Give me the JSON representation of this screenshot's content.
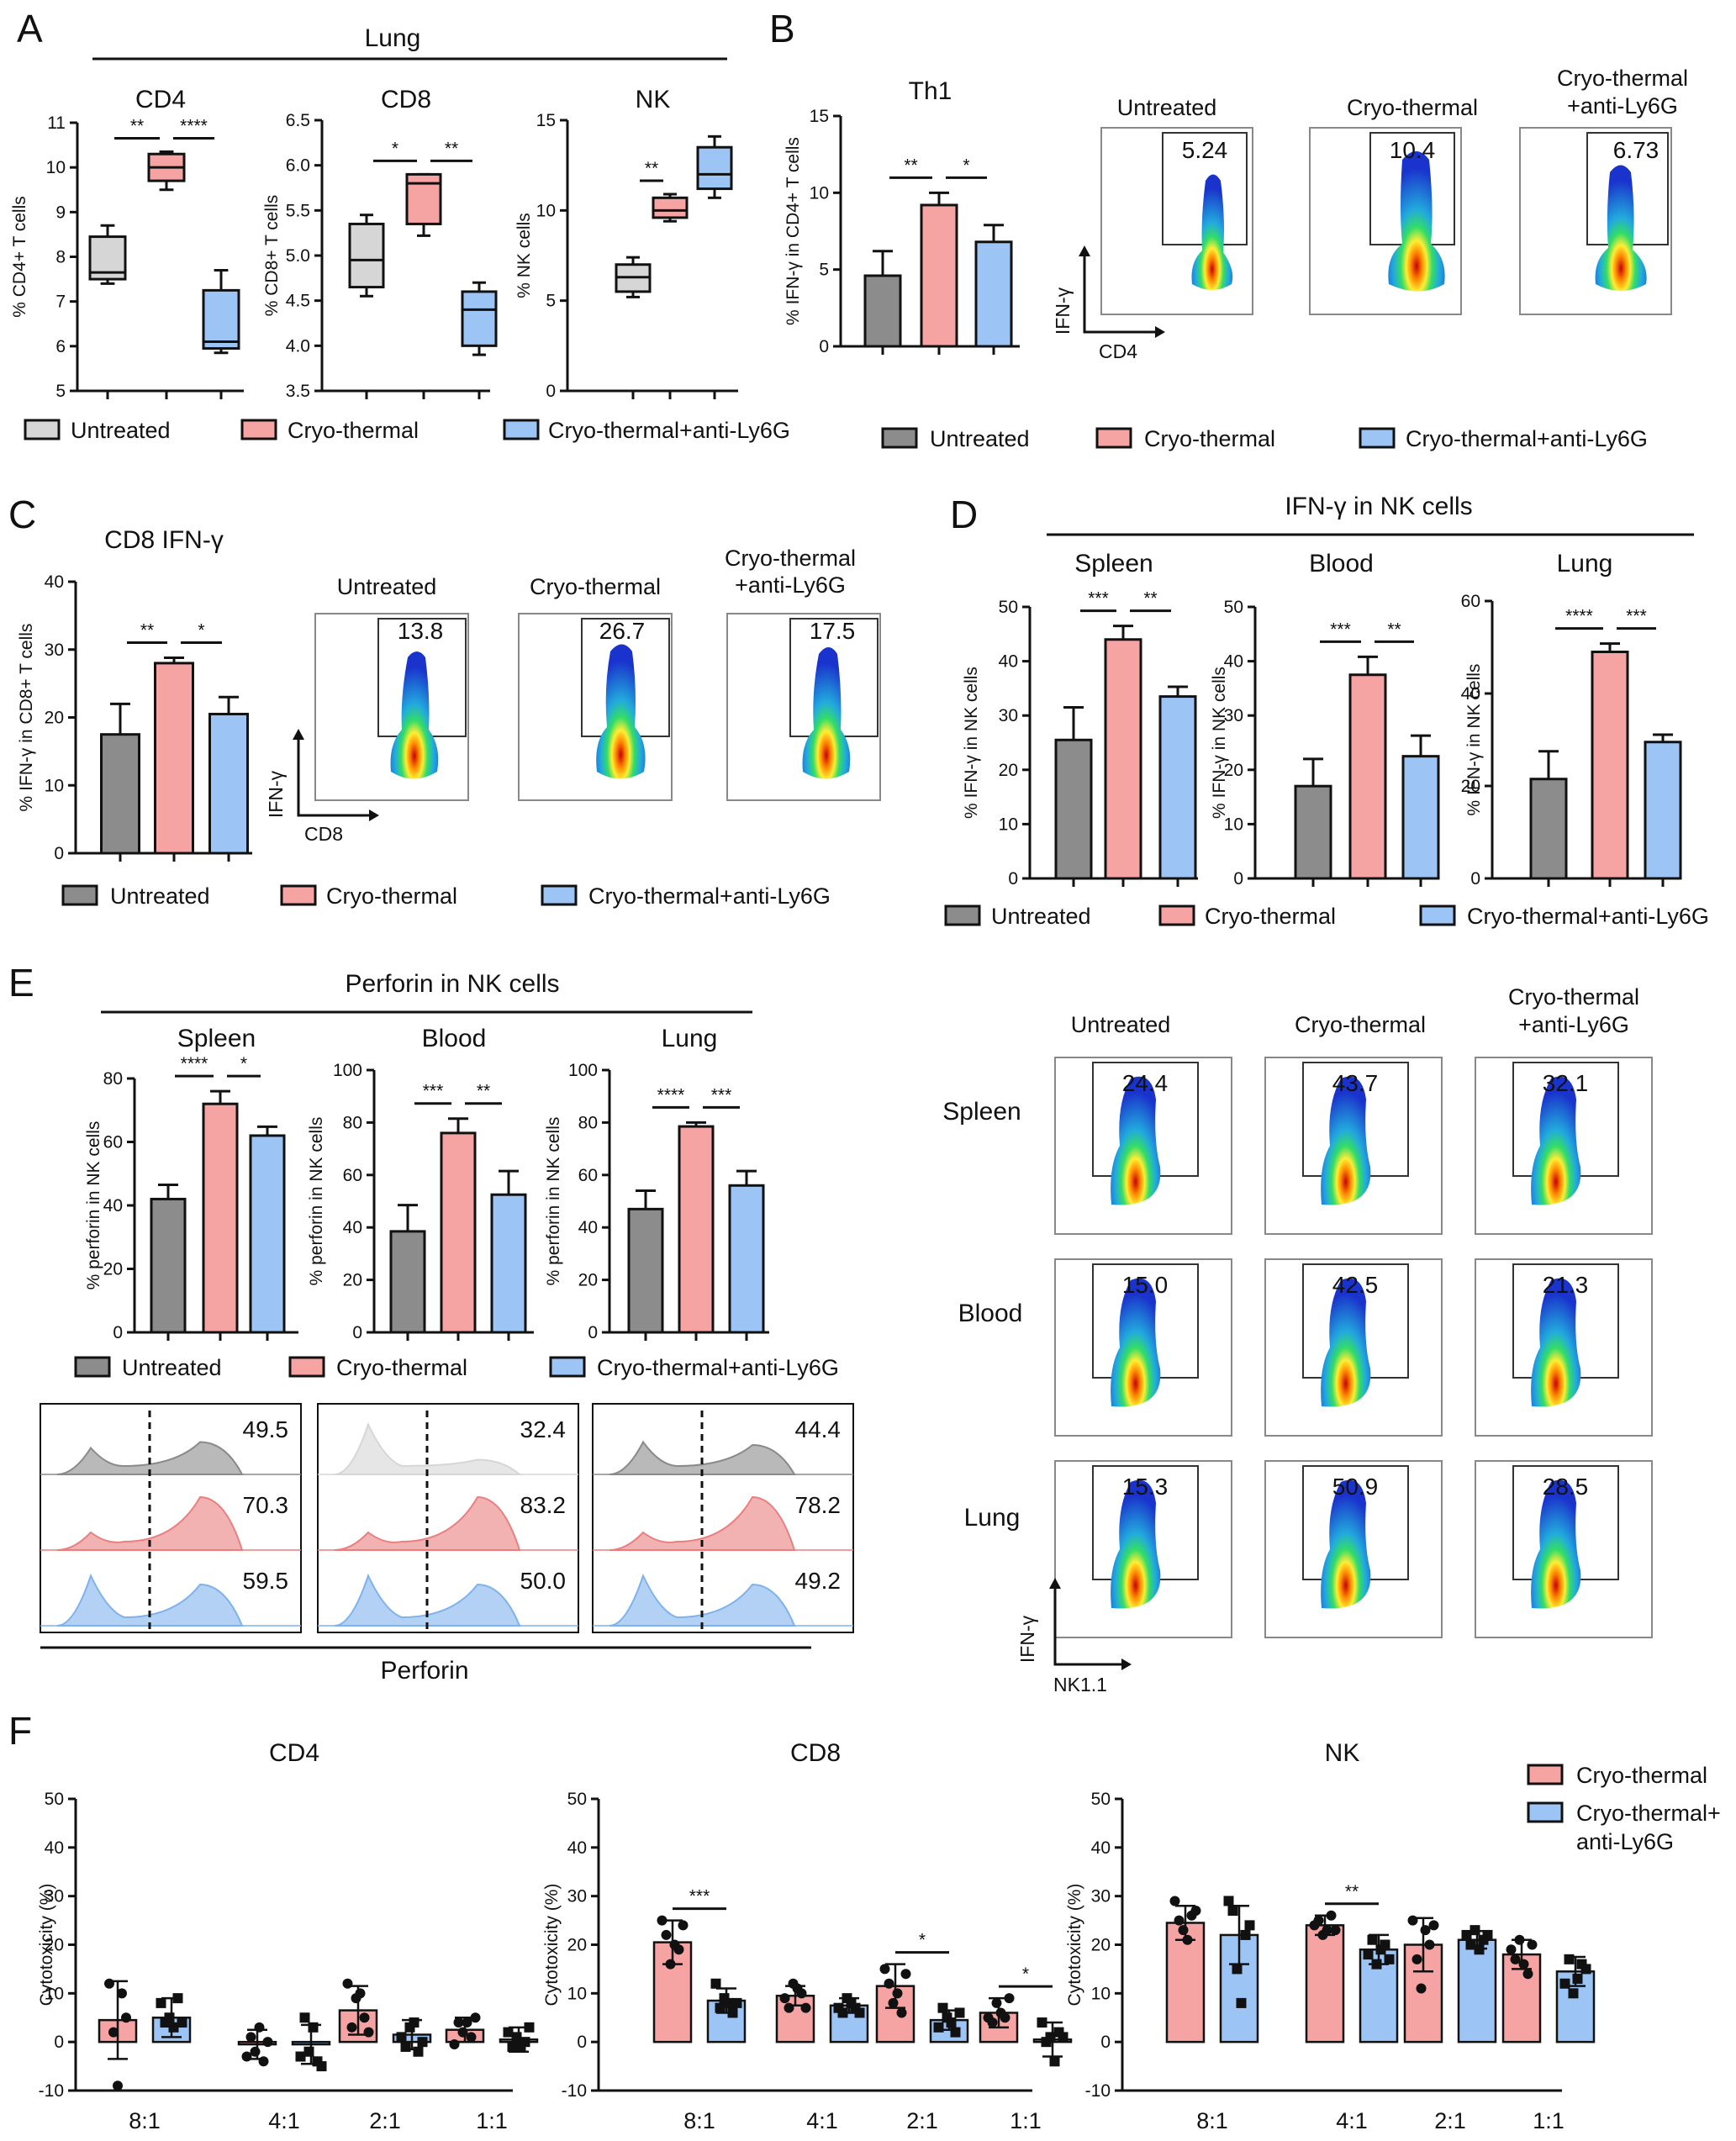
{
  "colors": {
    "untreated": "#8c8c8c",
    "cryo": "#f5a3a3",
    "ly6g": "#9cc5f5",
    "untreated_light": "#d6d6d6",
    "untreated_dark": "#8a8a8a",
    "cryo_dark": "#ea7f7f",
    "ly6g_dark": "#7fb2ec"
  },
  "panel_labels": [
    "A",
    "B",
    "C",
    "D",
    "E",
    "F"
  ],
  "legend": {
    "untreated": "Untreated",
    "cryo": "Cryo-thermal",
    "ly6g": "Cryo-thermal+anti-Ly6G",
    "f_cryo": "Cryo-thermal",
    "f_ly6g_1": "Cryo-thermal+",
    "f_ly6g_2": "anti-Ly6G"
  },
  "headers": {
    "lung": "Lung",
    "ifng_nk": "IFN-γ in NK cells",
    "perforin_nk": "Perforin in NK cells",
    "perforin": "Perforin"
  },
  "flow_labels": {
    "untreated": "Untreated",
    "cryo": "Cryo-thermal",
    "cryo_b1": "Cryo-thermal",
    "cryo_b2": "+anti-Ly6G",
    "ifng": "IFN-γ",
    "cd4": "CD4",
    "cd8": "CD8",
    "nk11": "NK1.1",
    "spleen": "Spleen",
    "blood": "Blood",
    "lung": "Lung"
  },
  "flow_values": {
    "B": [
      "5.24",
      "10.4",
      "6.73"
    ],
    "C": [
      "13.8",
      "26.7",
      "17.5"
    ],
    "E": [
      [
        "24.4",
        "43.7",
        "32.1"
      ],
      [
        "15.0",
        "42.5",
        "21.3"
      ],
      [
        "15.3",
        "50.9",
        "28.5"
      ]
    ]
  },
  "histogram_values": [
    [
      "49.5",
      "70.3",
      "59.5"
    ],
    [
      "32.4",
      "83.2",
      "50.0"
    ],
    [
      "44.4",
      "78.2",
      "49.2"
    ]
  ],
  "chart_data": [
    {
      "id": "A1",
      "type": "box",
      "title": "CD4",
      "ylabel": "% CD4+ T cells",
      "ylim": [
        5,
        11
      ],
      "yticks": [
        5,
        6,
        7,
        8,
        9,
        10,
        11
      ],
      "boxes": [
        {
          "group": "Untreated",
          "min": 7.4,
          "q1": 7.5,
          "median": 7.65,
          "q3": 8.45,
          "max": 8.7
        },
        {
          "group": "Cryo-thermal",
          "min": 9.5,
          "q1": 9.7,
          "median": 10.0,
          "q3": 10.3,
          "max": 10.35
        },
        {
          "group": "Cryo-thermal+anti-Ly6G",
          "min": 5.85,
          "q1": 5.95,
          "median": 6.1,
          "q3": 7.25,
          "max": 7.7
        }
      ],
      "sig": [
        {
          "between": [
            0,
            1
          ],
          "label": "**"
        },
        {
          "between": [
            1,
            2
          ],
          "label": "****"
        }
      ]
    },
    {
      "id": "A2",
      "type": "box",
      "title": "CD8",
      "ylabel": "% CD8+ T cells",
      "ylim": [
        3.5,
        6.5
      ],
      "yticks": [
        "3.5",
        "4.0",
        "4.5",
        "5.0",
        "5.5",
        "6.0",
        "6.5"
      ],
      "boxes": [
        {
          "group": "Untreated",
          "min": 4.55,
          "q1": 4.65,
          "median": 4.95,
          "q3": 5.35,
          "max": 5.45
        },
        {
          "group": "Cryo-thermal",
          "min": 5.22,
          "q1": 5.35,
          "median": 5.8,
          "q3": 5.9,
          "max": 5.9
        },
        {
          "group": "Cryo-thermal+anti-Ly6G",
          "min": 3.9,
          "q1": 4.0,
          "median": 4.4,
          "q3": 4.6,
          "max": 4.7
        }
      ],
      "sig": [
        {
          "between": [
            0,
            1
          ],
          "label": "*"
        },
        {
          "between": [
            1,
            2
          ],
          "label": "**"
        }
      ]
    },
    {
      "id": "A3",
      "type": "box",
      "title": "NK",
      "ylabel": "% NK cells",
      "ylim": [
        0,
        15
      ],
      "yticks": [
        0,
        5,
        10,
        15
      ],
      "boxes": [
        {
          "group": "Untreated",
          "min": 5.2,
          "q1": 5.5,
          "median": 6.3,
          "q3": 7.0,
          "max": 7.4
        },
        {
          "group": "Cryo-thermal",
          "min": 9.4,
          "q1": 9.6,
          "median": 10.0,
          "q3": 10.7,
          "max": 10.9
        },
        {
          "group": "Cryo-thermal+anti-Ly6G",
          "min": 10.7,
          "q1": 11.2,
          "median": 12.0,
          "q3": 13.5,
          "max": 14.1
        }
      ],
      "sig": [
        {
          "between": [
            0,
            1
          ],
          "label": "**"
        }
      ]
    },
    {
      "id": "B1",
      "type": "bar",
      "title": "Th1",
      "ylabel": "% IFN-γ in CD4+ T cells",
      "ylim": [
        0,
        15
      ],
      "yticks": [
        0,
        5,
        10,
        15
      ],
      "categories": [
        "Untreated",
        "Cryo-thermal",
        "Cryo-thermal+anti-Ly6G"
      ],
      "values": [
        4.6,
        9.2,
        6.8
      ],
      "err": [
        1.6,
        0.8,
        1.1
      ],
      "sig": [
        {
          "between": [
            0,
            1
          ],
          "label": "**"
        },
        {
          "between": [
            1,
            2
          ],
          "label": "*"
        }
      ]
    },
    {
      "id": "C1",
      "type": "bar",
      "title": "CD8 IFN-γ",
      "ylabel": "% IFN-γ in CD8+ T cells",
      "ylim": [
        0,
        40
      ],
      "yticks": [
        0,
        10,
        20,
        30,
        40
      ],
      "categories": [
        "Untreated",
        "Cryo-thermal",
        "Cryo-thermal+anti-Ly6G"
      ],
      "values": [
        17.5,
        28,
        20.5
      ],
      "err": [
        4.5,
        0.8,
        2.5
      ],
      "sig": [
        {
          "between": [
            0,
            1
          ],
          "label": "**"
        },
        {
          "between": [
            1,
            2
          ],
          "label": "*"
        }
      ]
    },
    {
      "id": "D1",
      "type": "bar",
      "title": "Spleen",
      "ylabel": "% IFN-γ in NK cells",
      "ylim": [
        0,
        50
      ],
      "yticks": [
        0,
        10,
        20,
        30,
        40,
        50
      ],
      "categories": [
        "Untreated",
        "Cryo-thermal",
        "Cryo-thermal+anti-Ly6G"
      ],
      "values": [
        25.5,
        44,
        33.5
      ],
      "err": [
        6,
        2.5,
        1.8
      ],
      "sig": [
        {
          "between": [
            0,
            1
          ],
          "label": "***"
        },
        {
          "between": [
            1,
            2
          ],
          "label": "**"
        }
      ]
    },
    {
      "id": "D2",
      "type": "bar",
      "title": "Blood",
      "ylabel": "% IFN-γ in NK cells",
      "ylim": [
        0,
        50
      ],
      "yticks": [
        0,
        10,
        20,
        30,
        40,
        50
      ],
      "categories": [
        "Untreated",
        "Cryo-thermal",
        "Cryo-thermal+anti-Ly6G"
      ],
      "values": [
        17,
        37.5,
        22.5
      ],
      "err": [
        5,
        3.3,
        3.8
      ],
      "sig": [
        {
          "between": [
            0,
            1
          ],
          "label": "***"
        },
        {
          "between": [
            1,
            2
          ],
          "label": "**"
        }
      ]
    },
    {
      "id": "D3",
      "type": "bar",
      "title": "Lung",
      "ylabel": "% IFN-γ in NK cells",
      "ylim": [
        0,
        60
      ],
      "yticks": [
        0,
        20,
        40,
        60
      ],
      "categories": [
        "Untreated",
        "Cryo-thermal",
        "Cryo-thermal+anti-Ly6G"
      ],
      "values": [
        21.5,
        49,
        29.5
      ],
      "err": [
        6,
        1.8,
        1.6
      ],
      "sig": [
        {
          "between": [
            0,
            1
          ],
          "label": "****"
        },
        {
          "between": [
            1,
            2
          ],
          "label": "***"
        }
      ]
    },
    {
      "id": "E1",
      "type": "bar",
      "title": "Spleen",
      "ylabel": "% perforin in NK cells",
      "ylim": [
        0,
        80
      ],
      "yticks": [
        0,
        20,
        40,
        60,
        80
      ],
      "categories": [
        "Untreated",
        "Cryo-thermal",
        "Cryo-thermal+anti-Ly6G"
      ],
      "values": [
        42,
        72,
        62
      ],
      "err": [
        4.5,
        4,
        2.8
      ],
      "sig": [
        {
          "between": [
            0,
            1
          ],
          "label": "****"
        },
        {
          "between": [
            1,
            2
          ],
          "label": "*"
        }
      ]
    },
    {
      "id": "E2",
      "type": "bar",
      "title": "Blood",
      "ylabel": "% perforin in NK cells",
      "ylim": [
        0,
        100
      ],
      "yticks": [
        0,
        20,
        40,
        60,
        80,
        100
      ],
      "categories": [
        "Untreated",
        "Cryo-thermal",
        "Cryo-thermal+anti-Ly6G"
      ],
      "values": [
        38.5,
        76,
        52.5
      ],
      "err": [
        10,
        5.5,
        9
      ],
      "sig": [
        {
          "between": [
            0,
            1
          ],
          "label": "***"
        },
        {
          "between": [
            1,
            2
          ],
          "label": "**"
        }
      ]
    },
    {
      "id": "E3",
      "type": "bar",
      "title": "Lung",
      "ylabel": "% perforin in NK cells",
      "ylim": [
        0,
        100
      ],
      "yticks": [
        0,
        20,
        40,
        60,
        80,
        100
      ],
      "categories": [
        "Untreated",
        "Cryo-thermal",
        "Cryo-thermal+anti-Ly6G"
      ],
      "values": [
        47,
        78.5,
        56
      ],
      "err": [
        7,
        1.5,
        5.5
      ],
      "sig": [
        {
          "between": [
            0,
            1
          ],
          "label": "****"
        },
        {
          "between": [
            1,
            2
          ],
          "label": "***"
        }
      ]
    },
    {
      "id": "F1",
      "type": "bar_scatter",
      "title": "CD4",
      "ylabel": "Cytotoxicity  (%)",
      "ylim": [
        -10,
        50
      ],
      "yticks": [
        -10,
        0,
        10,
        20,
        30,
        40,
        50
      ],
      "categories": [
        "8:1",
        "4:1",
        "2:1",
        "1:1"
      ],
      "series": [
        {
          "name": "Cryo-thermal",
          "values": [
            4.5,
            -0.5,
            6.5,
            2.5
          ],
          "err": [
            8,
            3,
            5,
            2.5
          ],
          "points": [
            [
              12,
              2,
              -9,
              10,
              5
            ],
            [
              -3,
              1,
              -2,
              3,
              -4,
              0
            ],
            [
              12,
              3,
              9,
              10,
              5,
              2
            ],
            [
              -0.5,
              4,
              2,
              4,
              1,
              5
            ]
          ]
        },
        {
          "name": "Cryo-thermal+anti-Ly6G",
          "values": [
            5,
            -0.5,
            1.5,
            0.5
          ],
          "err": [
            4,
            4,
            3,
            2.5
          ],
          "points": [
            [
              8,
              4,
              5,
              3,
              9,
              4
            ],
            [
              -3,
              5,
              -2,
              3,
              -4,
              -5
            ],
            [
              1,
              -1,
              3,
              4,
              -2,
              0
            ],
            [
              2,
              -1,
              1,
              -1,
              0,
              3
            ]
          ]
        }
      ],
      "sig": []
    },
    {
      "id": "F2",
      "type": "bar_scatter",
      "title": "CD8",
      "ylabel": "Cytotoxicity  (%)",
      "ylim": [
        -10,
        50
      ],
      "yticks": [
        -10,
        0,
        10,
        20,
        30,
        40,
        50
      ],
      "categories": [
        "8:1",
        "4:1",
        "2:1",
        "1:1"
      ],
      "series": [
        {
          "name": "Cryo-thermal",
          "values": [
            20.5,
            9.5,
            11.5,
            6
          ],
          "err": [
            4.5,
            2,
            4.5,
            3
          ],
          "points": [
            [
              25,
              22,
              16,
              20,
              19,
              24
            ],
            [
              9,
              7,
              12,
              11,
              10,
              7
            ],
            [
              15,
              12,
              8,
              10,
              6,
              14
            ],
            [
              5,
              4,
              8,
              6,
              5,
              9
            ]
          ]
        },
        {
          "name": "Cryo-thermal+anti-Ly6G",
          "values": [
            8.5,
            7.5,
            4.5,
            0.5
          ],
          "err": [
            2.5,
            1.5,
            2,
            3.5
          ],
          "points": [
            [
              12,
              7,
              9,
              8,
              6,
              8
            ],
            [
              7,
              6,
              9,
              8,
              7,
              6
            ],
            [
              3,
              7,
              5,
              4,
              2,
              6
            ],
            [
              4,
              0,
              1,
              -4,
              2,
              1
            ]
          ]
        }
      ],
      "sig": [
        {
          "cat": 0,
          "label": "***"
        },
        {
          "cat": 2,
          "label": "*"
        },
        {
          "cat": 3,
          "label": "*"
        }
      ]
    },
    {
      "id": "F3",
      "type": "bar_scatter",
      "title": "NK",
      "ylabel": "Cytotoxicity  (%)",
      "ylim": [
        -10,
        50
      ],
      "yticks": [
        -10,
        0,
        10,
        20,
        30,
        40,
        50
      ],
      "categories": [
        "8:1",
        "4:1",
        "2:1",
        "1:1"
      ],
      "series": [
        {
          "name": "Cryo-thermal",
          "values": [
            24.5,
            24,
            20,
            18
          ],
          "err": [
            3.5,
            2,
            5.5,
            3
          ],
          "points": [
            [
              29,
              25,
              23,
              21,
              26,
              27
            ],
            [
              24,
              25,
              22,
              23,
              26,
              23
            ],
            [
              25,
              17,
              11,
              23,
              20,
              24
            ],
            [
              19,
              17,
              21,
              16,
              14,
              20
            ]
          ]
        },
        {
          "name": "Cryo-thermal+anti-Ly6G",
          "values": [
            22,
            19,
            21,
            14.5
          ],
          "err": [
            6,
            3,
            1.8,
            3
          ],
          "points": [
            [
              29,
              27,
              15,
              8,
              22,
              24
            ],
            [
              18,
              21,
              16,
              19,
              20,
              17
            ],
            [
              22,
              20,
              23,
              19,
              21,
              22
            ],
            [
              12,
              17,
              10,
              13,
              16,
              15
            ]
          ]
        }
      ],
      "sig": [
        {
          "cat": 1,
          "label": "**"
        }
      ]
    }
  ]
}
